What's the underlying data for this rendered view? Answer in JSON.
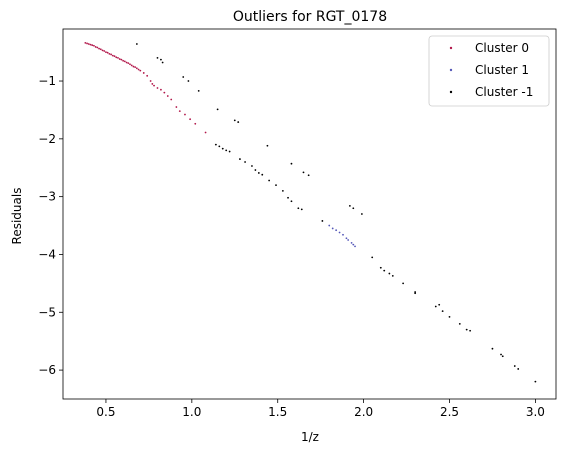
{
  "chart_data": {
    "type": "scatter",
    "title": "Outliers for RGT_0178",
    "xlabel": "1/z",
    "ylabel": "Residuals",
    "xlim": [
      0.25,
      3.12
    ],
    "ylim": [
      -6.5,
      -0.1
    ],
    "xticks": [
      0.5,
      1.0,
      1.5,
      2.0,
      2.5,
      3.0
    ],
    "xtick_labels": [
      "0.5",
      "1.0",
      "1.5",
      "2.0",
      "2.5",
      "3.0"
    ],
    "yticks": [
      -1,
      -2,
      -3,
      -4,
      -5,
      -6
    ],
    "ytick_labels": [
      "−1",
      "−2",
      "−3",
      "−4",
      "−5",
      "−6"
    ],
    "grid": false,
    "legend_position": "top-right",
    "series": [
      {
        "name": "Cluster 0",
        "color": "#b2184b",
        "points": [
          [
            0.38,
            -0.34
          ],
          [
            0.39,
            -0.35
          ],
          [
            0.4,
            -0.36
          ],
          [
            0.41,
            -0.37
          ],
          [
            0.42,
            -0.38
          ],
          [
            0.43,
            -0.39
          ],
          [
            0.44,
            -0.41
          ],
          [
            0.45,
            -0.42
          ],
          [
            0.46,
            -0.44
          ],
          [
            0.47,
            -0.45
          ],
          [
            0.48,
            -0.47
          ],
          [
            0.49,
            -0.48
          ],
          [
            0.5,
            -0.5
          ],
          [
            0.51,
            -0.51
          ],
          [
            0.52,
            -0.53
          ],
          [
            0.53,
            -0.54
          ],
          [
            0.54,
            -0.56
          ],
          [
            0.55,
            -0.57
          ],
          [
            0.56,
            -0.59
          ],
          [
            0.57,
            -0.6
          ],
          [
            0.58,
            -0.62
          ],
          [
            0.59,
            -0.63
          ],
          [
            0.6,
            -0.65
          ],
          [
            0.61,
            -0.66
          ],
          [
            0.62,
            -0.68
          ],
          [
            0.63,
            -0.69
          ],
          [
            0.64,
            -0.71
          ],
          [
            0.65,
            -0.73
          ],
          [
            0.66,
            -0.75
          ],
          [
            0.67,
            -0.76
          ],
          [
            0.68,
            -0.78
          ],
          [
            0.69,
            -0.8
          ],
          [
            0.7,
            -0.82
          ],
          [
            0.72,
            -0.86
          ],
          [
            0.74,
            -0.91
          ],
          [
            0.76,
            -1.0
          ],
          [
            0.77,
            -1.05
          ],
          [
            0.78,
            -1.08
          ],
          [
            0.8,
            -1.12
          ],
          [
            0.82,
            -1.15
          ],
          [
            0.84,
            -1.2
          ],
          [
            0.86,
            -1.26
          ],
          [
            0.88,
            -1.32
          ],
          [
            0.91,
            -1.45
          ],
          [
            0.93,
            -1.52
          ],
          [
            0.96,
            -1.58
          ],
          [
            0.99,
            -1.66
          ],
          [
            1.02,
            -1.74
          ],
          [
            1.08,
            -1.89
          ]
        ]
      },
      {
        "name": "Cluster 1",
        "color": "#5558b8",
        "points": [
          [
            1.8,
            -3.5
          ],
          [
            1.82,
            -3.55
          ],
          [
            1.84,
            -3.58
          ],
          [
            1.86,
            -3.62
          ],
          [
            1.88,
            -3.66
          ],
          [
            1.9,
            -3.72
          ],
          [
            1.91,
            -3.75
          ],
          [
            1.93,
            -3.8
          ],
          [
            1.94,
            -3.83
          ],
          [
            1.95,
            -3.86
          ]
        ]
      },
      {
        "name": "Cluster -1",
        "color": "#000000",
        "points": [
          [
            0.68,
            -0.36
          ],
          [
            0.8,
            -0.6
          ],
          [
            0.82,
            -0.63
          ],
          [
            0.83,
            -0.68
          ],
          [
            0.95,
            -0.93
          ],
          [
            0.98,
            -1.0
          ],
          [
            1.04,
            -1.17
          ],
          [
            1.15,
            -1.49
          ],
          [
            1.25,
            -1.68
          ],
          [
            1.27,
            -1.71
          ],
          [
            1.44,
            -2.12
          ],
          [
            1.14,
            -2.1
          ],
          [
            1.16,
            -2.13
          ],
          [
            1.18,
            -2.17
          ],
          [
            1.2,
            -2.2
          ],
          [
            1.22,
            -2.22
          ],
          [
            1.28,
            -2.35
          ],
          [
            1.31,
            -2.4
          ],
          [
            1.35,
            -2.47
          ],
          [
            1.37,
            -2.54
          ],
          [
            1.39,
            -2.59
          ],
          [
            1.41,
            -2.62
          ],
          [
            1.45,
            -2.72
          ],
          [
            1.49,
            -2.8
          ],
          [
            1.53,
            -2.9
          ],
          [
            1.56,
            -3.02
          ],
          [
            1.58,
            -3.08
          ],
          [
            1.62,
            -3.2
          ],
          [
            1.64,
            -3.22
          ],
          [
            1.58,
            -2.43
          ],
          [
            1.65,
            -2.58
          ],
          [
            1.68,
            -2.63
          ],
          [
            1.76,
            -3.42
          ],
          [
            1.92,
            -3.16
          ],
          [
            1.94,
            -3.2
          ],
          [
            1.99,
            -3.3
          ],
          [
            2.05,
            -4.05
          ],
          [
            2.1,
            -4.23
          ],
          [
            2.12,
            -4.28
          ],
          [
            2.15,
            -4.33
          ],
          [
            2.17,
            -4.37
          ],
          [
            2.23,
            -4.5
          ],
          [
            2.3,
            -4.65
          ],
          [
            2.3,
            -4.67
          ],
          [
            2.42,
            -4.9
          ],
          [
            2.44,
            -4.87
          ],
          [
            2.46,
            -4.98
          ],
          [
            2.5,
            -5.08
          ],
          [
            2.56,
            -5.2
          ],
          [
            2.6,
            -5.3
          ],
          [
            2.62,
            -5.32
          ],
          [
            2.75,
            -5.63
          ],
          [
            2.8,
            -5.73
          ],
          [
            2.81,
            -5.76
          ],
          [
            2.88,
            -5.93
          ],
          [
            2.9,
            -5.98
          ],
          [
            3.0,
            -6.2
          ]
        ]
      }
    ]
  }
}
